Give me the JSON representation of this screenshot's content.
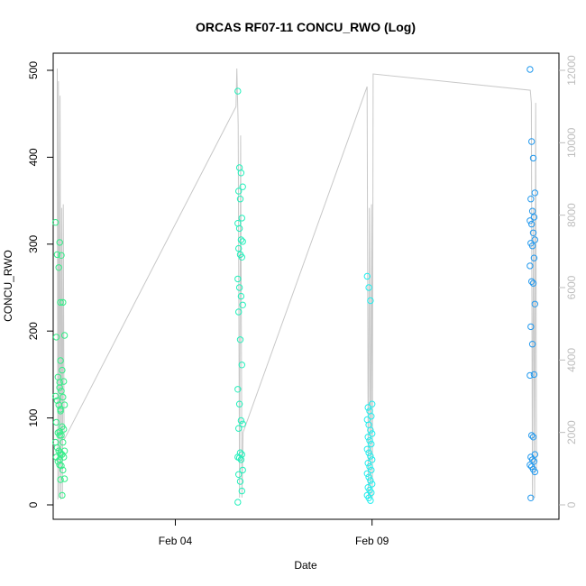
{
  "chart_data": {
    "type": "scatter",
    "title": "ORCAS RF07-11 CONCU_RWO (Log)",
    "xlabel": "Date",
    "ylabel": "CONCU_RWO",
    "x_axis": {
      "type": "date",
      "range": [
        "2016-01-31T21:30",
        "2016-02-13T18:00"
      ],
      "ticks": [
        {
          "value": "2016-02-04",
          "label": "Feb 04"
        },
        {
          "value": "2016-02-09",
          "label": "Feb 09"
        }
      ]
    },
    "y_left": {
      "range": [
        0,
        500
      ],
      "ticks": [
        0,
        100,
        200,
        300,
        400,
        500
      ]
    },
    "y_right": {
      "range": [
        0,
        12000
      ],
      "ticks": [
        0,
        2000,
        4000,
        6000,
        8000,
        10000,
        12000
      ],
      "color": "#bdbdbd"
    },
    "grid": false,
    "legend": "none",
    "series": [
      {
        "role": "points",
        "axis": "left",
        "color": "#33ee88",
        "x_time": "2016-02-01T00:25",
        "y": [
          325,
          288,
          273,
          233,
          193,
          147,
          135,
          125,
          120,
          115,
          110,
          95,
          83,
          80,
          72,
          66,
          62,
          58,
          55,
          50,
          46
        ]
      },
      {
        "role": "points",
        "axis": "left",
        "color": "#33ee88",
        "x_time": "2016-02-01T02:55",
        "y": [
          302,
          287,
          233,
          195,
          166,
          155,
          142,
          141,
          131,
          124,
          115,
          108,
          90,
          87,
          84,
          80,
          72,
          62,
          60,
          58,
          55,
          52,
          45,
          40,
          30,
          29,
          11
        ]
      },
      {
        "role": "points",
        "axis": "left",
        "color": "#22f0bb",
        "x_time": "2016-02-05T15:35",
        "y": [
          476,
          388,
          382,
          366,
          361,
          352,
          330,
          324,
          318,
          305,
          303,
          295,
          288,
          285,
          260,
          250,
          240,
          230,
          222,
          190,
          161,
          133,
          116,
          97,
          93,
          88,
          60,
          58,
          55,
          54,
          52,
          40,
          35,
          27,
          16,
          3
        ]
      },
      {
        "role": "points",
        "axis": "left",
        "color": "#22eeee",
        "x_time": "2016-02-08T22:30",
        "y": [
          263,
          250,
          235,
          116,
          112,
          108,
          102,
          98,
          92,
          86,
          82,
          78,
          74,
          70,
          64,
          60,
          56,
          52,
          48,
          44,
          40,
          36,
          32,
          28,
          24,
          20,
          17,
          14,
          11,
          8,
          5
        ]
      },
      {
        "role": "points",
        "axis": "left",
        "color": "#2299ee",
        "x_time": "2016-02-13T01:50",
        "y": [
          501,
          418,
          399,
          359,
          352,
          338,
          331,
          327,
          323,
          313,
          305,
          301,
          298,
          284,
          275,
          257,
          255,
          231,
          205,
          185,
          150,
          149,
          80,
          78,
          58,
          55,
          52,
          50,
          46,
          44,
          41,
          38,
          8
        ]
      }
    ],
    "line": {
      "role": "line",
      "axis": "right",
      "color": "#c8c8c8",
      "points": [
        {
          "x": "2016-02-01T00:00",
          "y": 12050
        },
        {
          "x": "2016-02-01T00:20",
          "y": 150
        },
        {
          "x": "2016-02-01T00:40",
          "y": 11700
        },
        {
          "x": "2016-02-01T01:10",
          "y": 200
        },
        {
          "x": "2016-02-01T01:40",
          "y": 11300
        },
        {
          "x": "2016-02-01T02:10",
          "y": 150
        },
        {
          "x": "2016-02-01T02:40",
          "y": 8200
        },
        {
          "x": "2016-02-01T03:10",
          "y": 200
        },
        {
          "x": "2016-02-01T03:40",
          "y": 8300
        },
        {
          "x": "2016-02-01T04:10",
          "y": 1800
        },
        {
          "x": "2016-02-05T13:00",
          "y": 11000
        },
        {
          "x": "2016-02-05T13:30",
          "y": 12050
        },
        {
          "x": "2016-02-05T14:20",
          "y": 10500
        },
        {
          "x": "2016-02-05T15:10",
          "y": 200
        },
        {
          "x": "2016-02-05T15:50",
          "y": 10200
        },
        {
          "x": "2016-02-05T16:40",
          "y": 200
        },
        {
          "x": "2016-02-05T17:20",
          "y": 2000
        },
        {
          "x": "2016-02-08T21:00",
          "y": 11550
        },
        {
          "x": "2016-02-08T21:40",
          "y": 200
        },
        {
          "x": "2016-02-08T22:20",
          "y": 8200
        },
        {
          "x": "2016-02-08T23:00",
          "y": 200
        },
        {
          "x": "2016-02-08T23:40",
          "y": 8300
        },
        {
          "x": "2016-02-09T00:10",
          "y": 200
        },
        {
          "x": "2016-02-09T00:40",
          "y": 11900
        },
        {
          "x": "2016-02-13T00:30",
          "y": 11450
        },
        {
          "x": "2016-02-13T01:10",
          "y": 11100
        },
        {
          "x": "2016-02-13T01:50",
          "y": 150
        },
        {
          "x": "2016-02-13T02:30",
          "y": 8200
        },
        {
          "x": "2016-02-13T03:10",
          "y": 200
        },
        {
          "x": "2016-02-13T03:50",
          "y": 11100
        },
        {
          "x": "2016-02-13T04:20",
          "y": 1000
        }
      ]
    }
  }
}
